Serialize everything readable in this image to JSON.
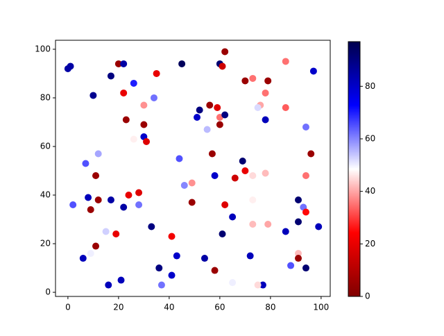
{
  "chart_data": {
    "type": "scatter",
    "x": [
      0,
      1,
      20,
      22,
      17,
      35,
      45,
      60,
      61,
      62,
      86,
      97,
      10,
      22,
      26,
      34,
      30,
      23,
      30,
      30,
      31,
      26,
      12,
      7,
      11,
      44,
      46,
      49,
      24,
      28,
      8,
      12,
      17,
      9,
      2,
      22,
      28,
      49,
      15,
      19,
      33,
      41,
      11,
      9,
      6,
      43,
      36,
      21,
      16,
      37,
      41,
      54,
      58,
      51,
      52,
      55,
      56,
      59,
      60,
      60,
      62,
      57,
      58,
      69,
      70,
      66,
      73,
      62,
      61,
      65,
      65,
      70,
      73,
      79,
      78,
      76,
      75,
      78,
      86,
      94,
      96,
      94,
      78,
      73,
      91,
      93,
      94,
      73,
      79,
      86,
      91,
      72,
      91,
      91,
      88,
      94,
      99,
      77,
      75
    ],
    "y": [
      92,
      93,
      94,
      94,
      89,
      90,
      94,
      94,
      93,
      99,
      95,
      91,
      81,
      82,
      86,
      80,
      77,
      71,
      69,
      64,
      62,
      63,
      57,
      53,
      48,
      55,
      44,
      45,
      40,
      41,
      39,
      38,
      38,
      34,
      36,
      35,
      36,
      37,
      25,
      24,
      27,
      23,
      19,
      16,
      14,
      15,
      10,
      5,
      3,
      3,
      7,
      14,
      9,
      72,
      75,
      67,
      77,
      76,
      72,
      69,
      73,
      57,
      48,
      54,
      50,
      47,
      48,
      36,
      24,
      31,
      4,
      87,
      88,
      87,
      82,
      77,
      76,
      71,
      76,
      68,
      57,
      48,
      49,
      38,
      38,
      35,
      33,
      28,
      28,
      25,
      29,
      15,
      16,
      14,
      11,
      10,
      27,
      3,
      3
    ],
    "c": [
      85,
      85,
      5,
      85,
      90,
      20,
      95,
      92,
      15,
      5,
      35,
      80,
      88,
      20,
      70,
      62,
      38,
      5,
      5,
      80,
      18,
      47,
      57,
      65,
      5,
      65,
      60,
      38,
      20,
      18,
      82,
      5,
      85,
      5,
      65,
      85,
      62,
      5,
      53,
      20,
      90,
      22,
      5,
      50,
      82,
      80,
      90,
      82,
      82,
      62,
      80,
      85,
      5,
      80,
      90,
      55,
      5,
      18,
      35,
      5,
      90,
      5,
      80,
      92,
      20,
      15,
      45,
      18,
      92,
      82,
      50,
      5,
      35,
      5,
      35,
      40,
      52,
      82,
      33,
      62,
      5,
      35,
      42,
      47,
      92,
      62,
      25,
      42,
      40,
      82,
      92,
      82,
      42,
      5,
      65,
      92,
      82,
      82,
      45
    ],
    "colormap": "seismic_r",
    "clim": [
      0,
      97
    ],
    "cticks": [
      0,
      20,
      40,
      60,
      80
    ],
    "xlim": [
      -4.9,
      103.6
    ],
    "ylim": [
      -1.7,
      103.7
    ],
    "xticks": [
      0,
      20,
      40,
      60,
      80,
      100
    ],
    "yticks": [
      0,
      20,
      40,
      60,
      80,
      100
    ]
  }
}
